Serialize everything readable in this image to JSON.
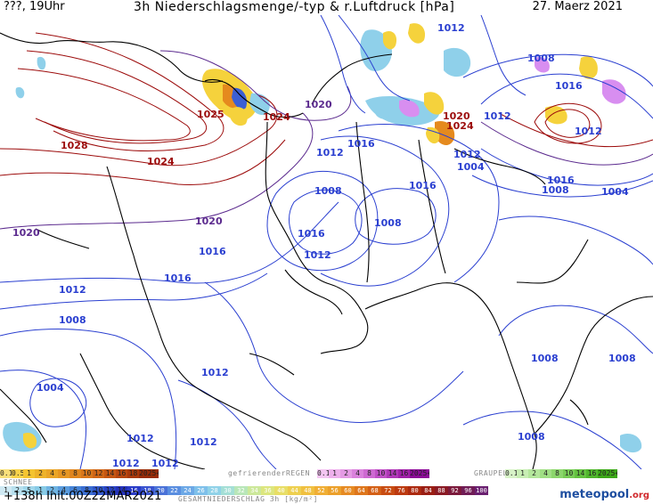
{
  "header": {
    "left": "???, 19Uhr",
    "title": "3h Niederschlagsmenge/-typ & r.Luftdruck [hPa]",
    "date": "27. Maerz 2021"
  },
  "map": {
    "isobar_labels": [
      {
        "text": "1012",
        "color": "#2a3fd0"
      },
      {
        "text": "1008",
        "color": "#2a3fd0"
      },
      {
        "text": "1016",
        "color": "#2a3fd0"
      },
      {
        "text": "1025",
        "color": "#9c0b0b"
      },
      {
        "text": "1024",
        "color": "#9c0b0b"
      },
      {
        "text": "1020",
        "color": "#5b2a8e"
      },
      {
        "text": "1028",
        "color": "#9c0b0b"
      },
      {
        "text": "1024",
        "color": "#9c0b0b"
      },
      {
        "text": "1012",
        "color": "#2a3fd0"
      },
      {
        "text": "1016",
        "color": "#2a3fd0"
      },
      {
        "text": "1016",
        "color": "#2a3fd0"
      },
      {
        "text": "1020",
        "color": "#9c0b0b"
      },
      {
        "text": "1024",
        "color": "#9c0b0b"
      },
      {
        "text": "1012",
        "color": "#2a3fd0"
      },
      {
        "text": "1012",
        "color": "#2a3fd0"
      },
      {
        "text": "1004",
        "color": "#2a3fd0"
      },
      {
        "text": "1012",
        "color": "#2a3fd0"
      },
      {
        "text": "1016",
        "color": "#2a3fd0"
      },
      {
        "text": "1008",
        "color": "#2a3fd0"
      },
      {
        "text": "1004",
        "color": "#2a3fd0"
      },
      {
        "text": "1008",
        "color": "#2a3fd0"
      },
      {
        "text": "1016",
        "color": "#2a3fd0"
      },
      {
        "text": "1020",
        "color": "#5b2a8e"
      },
      {
        "text": "1008",
        "color": "#2a3fd0"
      },
      {
        "text": "1016",
        "color": "#2a3fd0"
      },
      {
        "text": "1020",
        "color": "#5b2a8e"
      },
      {
        "text": "1016",
        "color": "#2a3fd0"
      },
      {
        "text": "1012",
        "color": "#2a3fd0"
      },
      {
        "text": "1012",
        "color": "#2a3fd0"
      },
      {
        "text": "1012",
        "color": "#2a3fd0"
      },
      {
        "text": "1008",
        "color": "#2a3fd0"
      },
      {
        "text": "1012",
        "color": "#2a3fd0"
      },
      {
        "text": "1004",
        "color": "#2a3fd0"
      },
      {
        "text": "1008",
        "color": "#2a3fd0"
      },
      {
        "text": "1008",
        "color": "#2a3fd0"
      },
      {
        "text": "1012",
        "color": "#2a3fd0"
      },
      {
        "text": "1012",
        "color": "#2a3fd0"
      },
      {
        "text": "1008",
        "color": "#2a3fd0"
      },
      {
        "text": "1012",
        "color": "#2a3fd0"
      }
    ],
    "colors": {
      "isobar_low": "#2a3fd0",
      "isobar_mid": "#5b2a8e",
      "isobar_high": "#9c0b0b",
      "coastline": "#000000",
      "rain_light": "#f5d23c",
      "rain_heavy": "#e58a1e",
      "snow": "#8fd0ea",
      "snow_heavy": "#3b5fd4",
      "mixed": "#d88ef0"
    }
  },
  "legend": {
    "rain_values": [
      "0.1",
      "0.5",
      "1",
      "2",
      "4",
      "6",
      "8",
      "10",
      "12",
      "14",
      "16",
      "18",
      "2025+"
    ],
    "rain_colors": [
      "#f9e07a",
      "#f7d24a",
      "#f4c430",
      "#eeb32a",
      "#eaa526",
      "#e69622",
      "#e0861e",
      "#d9771a",
      "#d06616",
      "#c45612",
      "#b8460e",
      "#a9380b",
      "#982c08"
    ],
    "freezing_label": "gefrierenderREGEN",
    "freezing_values": [
      "0.1",
      "1",
      "2",
      "4",
      "8",
      "10",
      "14",
      "16",
      "2025+"
    ],
    "freezing_colors": [
      "#f4c6f2",
      "#eeb0ec",
      "#e49ae4",
      "#da82dc",
      "#ce6ad2",
      "#c050c6",
      "#b038b8",
      "#a020a8",
      "#8c0c98"
    ],
    "graupel_label": "GRAUPEL",
    "graupel_values": [
      "0.1",
      "1",
      "2",
      "4",
      "8",
      "10",
      "14",
      "16",
      "2025+"
    ],
    "graupel_colors": [
      "#d8f3c8",
      "#c8eeb4",
      "#b4e79c",
      "#a0df84",
      "#8cd66c",
      "#78cc56",
      "#64c240",
      "#50b62c",
      "#3ca818"
    ],
    "snow_label": "SCHNEE",
    "snow_values": [
      "1",
      "2",
      "5",
      "1",
      "2",
      "4",
      "6",
      "8",
      "10",
      "12",
      "14"
    ],
    "snow_colors": [
      "#cfe9f3",
      "#b8e0ee",
      "#a0d6ea",
      "#88cbe6",
      "#6fb4e2",
      "#5a9cde",
      "#4684d8",
      "#3a6ed2",
      "#3158cc",
      "#2a44c4",
      "#2432bc"
    ],
    "total_values": [
      "16",
      "18",
      "20",
      "22",
      "24",
      "26",
      "28",
      "30",
      "32",
      "34",
      "36",
      "40",
      "44",
      "48",
      "52",
      "56",
      "60",
      "64",
      "68",
      "72",
      "76",
      "80",
      "84",
      "88",
      "92",
      "96",
      "100"
    ],
    "total_colors": [
      "#2a3cc8",
      "#3a54d0",
      "#4a72d8",
      "#5a8ee0",
      "#6ca8e6",
      "#7ec0ea",
      "#90d2e8",
      "#a4dfd6",
      "#b8e6b8",
      "#cce89a",
      "#dce67e",
      "#e8de66",
      "#eed050",
      "#f0c040",
      "#f0ae34",
      "#eca02a",
      "#e68a22",
      "#de761c",
      "#d46016",
      "#c84c12",
      "#bc3a10",
      "#ac2a10",
      "#9a1e14",
      "#8a1a24",
      "#7c1a3c",
      "#701c56",
      "#6a2070"
    ],
    "total_label": "GESAMTNIEDERSCHLAG 3h [kg/m²]"
  },
  "footer": {
    "init": "+138h Init:00Z22MAR2021",
    "brand_main": "meteopool",
    "brand_suffix": ".org"
  }
}
